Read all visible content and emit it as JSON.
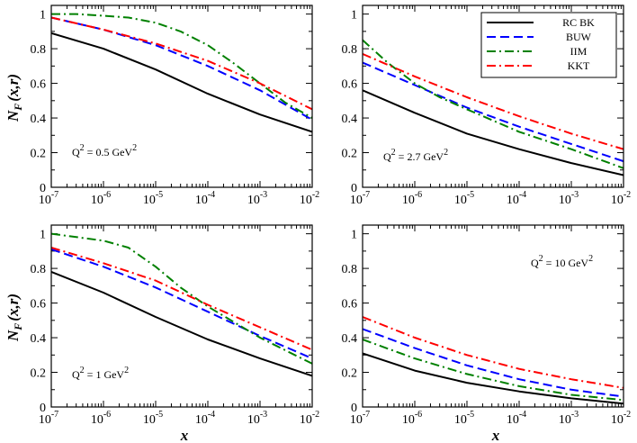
{
  "chart_data": [
    {
      "type": "line",
      "panel": "top-left",
      "annotation": {
        "prefix": "Q",
        "exp": "2",
        "value": " = 0.5 GeV",
        "unit_exp": "2"
      },
      "xscale": "log",
      "xlim": [
        1e-07,
        0.01
      ],
      "ylim": [
        0,
        1.05
      ],
      "xlabel": "",
      "ylabel": "N_F(x,r)",
      "legend": false,
      "series": [
        {
          "name": "RC BK",
          "x": [
            1e-07,
            1e-06,
            1e-05,
            0.0001,
            0.001,
            0.01
          ],
          "y": [
            0.89,
            0.8,
            0.68,
            0.54,
            0.42,
            0.32
          ]
        },
        {
          "name": "BUW",
          "x": [
            1e-07,
            1e-06,
            1e-05,
            0.0001,
            0.001,
            0.01
          ],
          "y": [
            0.98,
            0.91,
            0.82,
            0.7,
            0.56,
            0.39
          ]
        },
        {
          "name": "IIM",
          "x": [
            1e-07,
            3e-07,
            1e-06,
            3e-06,
            1e-05,
            3e-05,
            0.0001,
            0.0003,
            0.001,
            0.003,
            0.01
          ],
          "y": [
            1.0,
            1.0,
            0.99,
            0.98,
            0.95,
            0.9,
            0.82,
            0.72,
            0.6,
            0.49,
            0.4
          ]
        },
        {
          "name": "KKT",
          "x": [
            1e-07,
            1e-06,
            1e-05,
            0.0001,
            0.001,
            0.01
          ],
          "y": [
            0.98,
            0.91,
            0.83,
            0.73,
            0.6,
            0.45
          ]
        }
      ]
    },
    {
      "type": "line",
      "panel": "top-right",
      "annotation": {
        "prefix": "Q",
        "exp": "2",
        "value": " = 2.7 GeV",
        "unit_exp": "2"
      },
      "xscale": "log",
      "xlim": [
        1e-07,
        0.01
      ],
      "ylim": [
        0,
        1.05
      ],
      "xlabel": "",
      "ylabel": "",
      "legend": true,
      "series": [
        {
          "name": "RC BK",
          "x": [
            1e-07,
            1e-06,
            1e-05,
            0.0001,
            0.001,
            0.01
          ],
          "y": [
            0.56,
            0.43,
            0.31,
            0.22,
            0.14,
            0.07
          ]
        },
        {
          "name": "BUW",
          "x": [
            1e-07,
            1e-06,
            1e-05,
            0.0001,
            0.001,
            0.01
          ],
          "y": [
            0.72,
            0.59,
            0.46,
            0.35,
            0.25,
            0.15
          ]
        },
        {
          "name": "IIM",
          "x": [
            1e-07,
            3e-07,
            1e-06,
            3e-06,
            1e-05,
            0.0001,
            0.001,
            0.01
          ],
          "y": [
            0.85,
            0.72,
            0.6,
            0.52,
            0.45,
            0.32,
            0.22,
            0.11
          ]
        },
        {
          "name": "KKT",
          "x": [
            1e-07,
            1e-06,
            1e-05,
            0.0001,
            0.001,
            0.01
          ],
          "y": [
            0.77,
            0.64,
            0.52,
            0.41,
            0.31,
            0.22
          ]
        }
      ]
    },
    {
      "type": "line",
      "panel": "bottom-left",
      "annotation": {
        "prefix": "Q",
        "exp": "2",
        "value": " = 1 GeV",
        "unit_exp": "2"
      },
      "xscale": "log",
      "xlim": [
        1e-07,
        0.01
      ],
      "ylim": [
        0,
        1.05
      ],
      "xlabel": "x",
      "ylabel": "N_F(x,r)",
      "legend": false,
      "series": [
        {
          "name": "RC BK",
          "x": [
            1e-07,
            1e-06,
            1e-05,
            0.0001,
            0.001,
            0.01
          ],
          "y": [
            0.78,
            0.66,
            0.52,
            0.39,
            0.28,
            0.18
          ]
        },
        {
          "name": "BUW",
          "x": [
            1e-07,
            1e-06,
            1e-05,
            0.0001,
            0.001,
            0.01
          ],
          "y": [
            0.91,
            0.81,
            0.69,
            0.55,
            0.41,
            0.28
          ]
        },
        {
          "name": "IIM",
          "x": [
            1e-07,
            1e-06,
            3e-06,
            1e-05,
            3e-05,
            0.0001,
            0.001,
            0.01
          ],
          "y": [
            1.0,
            0.96,
            0.92,
            0.81,
            0.69,
            0.58,
            0.4,
            0.25
          ]
        },
        {
          "name": "KKT",
          "x": [
            1e-07,
            1e-06,
            1e-05,
            0.0001,
            0.001,
            0.01
          ],
          "y": [
            0.92,
            0.83,
            0.73,
            0.59,
            0.46,
            0.33
          ]
        }
      ]
    },
    {
      "type": "line",
      "panel": "bottom-right",
      "annotation": {
        "prefix": "Q",
        "exp": "2",
        "value": " = 10 GeV",
        "unit_exp": "2"
      },
      "xscale": "log",
      "xlim": [
        1e-07,
        0.01
      ],
      "ylim": [
        0,
        1.05
      ],
      "xlabel": "x",
      "ylabel": "",
      "legend": false,
      "series": [
        {
          "name": "RC BK",
          "x": [
            1e-07,
            1e-06,
            1e-05,
            0.0001,
            0.001,
            0.01
          ],
          "y": [
            0.31,
            0.21,
            0.14,
            0.09,
            0.05,
            0.02
          ]
        },
        {
          "name": "BUW",
          "x": [
            1e-07,
            1e-06,
            1e-05,
            0.0001,
            0.001,
            0.01
          ],
          "y": [
            0.45,
            0.34,
            0.24,
            0.16,
            0.1,
            0.06
          ]
        },
        {
          "name": "IIM",
          "x": [
            1e-07,
            1e-06,
            1e-05,
            0.0001,
            0.001,
            0.01
          ],
          "y": [
            0.39,
            0.28,
            0.19,
            0.12,
            0.07,
            0.04
          ]
        },
        {
          "name": "KKT",
          "x": [
            1e-07,
            1e-06,
            1e-05,
            0.0001,
            0.001,
            0.01
          ],
          "y": [
            0.52,
            0.4,
            0.3,
            0.22,
            0.16,
            0.11
          ]
        }
      ]
    }
  ],
  "legend": [
    {
      "name": "RC BK",
      "color": "#000000",
      "dash": "solid"
    },
    {
      "name": "BUW",
      "color": "#0000ff",
      "dash": "dash"
    },
    {
      "name": "IIM",
      "color": "#008000",
      "dash": "dashdot"
    },
    {
      "name": "KKT",
      "color": "#ff0000",
      "dash": "dashdot"
    }
  ],
  "y_ticks": [
    "0",
    "0.2",
    "0.4",
    "0.6",
    "0.8",
    "1"
  ],
  "y_tick_values": [
    0,
    0.2,
    0.4,
    0.6,
    0.8,
    1.0
  ],
  "x_tick_exponents": [
    "-7",
    "-6",
    "-5",
    "-4",
    "-3",
    "-2"
  ],
  "x_tick_base": "10",
  "ylabel_main": "N",
  "ylabel_sub": "F",
  "ylabel_args": "(x,r)",
  "xlabel": "x"
}
